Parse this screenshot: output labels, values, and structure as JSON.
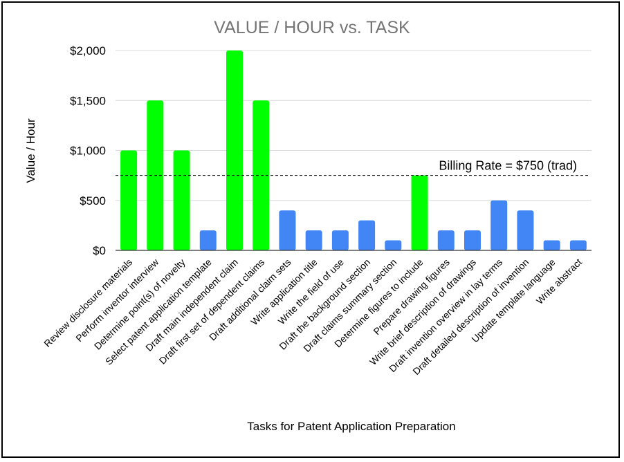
{
  "chart_data": {
    "type": "bar",
    "title": "VALUE / HOUR vs. TASK",
    "xlabel": "Tasks for Patent Application Preparation",
    "ylabel": "Value / Hour",
    "ylim": [
      0,
      2000
    ],
    "yticks": [
      0,
      500,
      1000,
      1500,
      2000
    ],
    "ytick_labels": [
      "$0",
      "$500",
      "$1,000",
      "$1,500",
      "$2,000"
    ],
    "grid": true,
    "categories": [
      "Review disclosure materials",
      "Perform inventor interview",
      "Determine point(s) of novelty",
      "Select patent application template",
      "Draft main independent claim",
      "Draft first set of dependent claims",
      "Draft additional claim sets",
      "Write application title",
      "Write the field of use",
      "Draft the background section",
      "Draft claims summary section",
      "Determine figures to include",
      "Prepare drawing figures",
      "Write brief description of drawings",
      "Draft invention overview in lay terms",
      "Draft detailed description of invention",
      "Update template language",
      "Write abstract"
    ],
    "values": [
      1000,
      1500,
      1000,
      200,
      2000,
      1500,
      400,
      200,
      200,
      300,
      100,
      750,
      200,
      200,
      500,
      400,
      100,
      100
    ],
    "bar_colors": [
      "#00ff00",
      "#00ff00",
      "#00ff00",
      "#4285f4",
      "#00ff00",
      "#00ff00",
      "#4285f4",
      "#4285f4",
      "#4285f4",
      "#4285f4",
      "#4285f4",
      "#00ff00",
      "#4285f4",
      "#4285f4",
      "#4285f4",
      "#4285f4",
      "#4285f4",
      "#4285f4"
    ],
    "reference_line": {
      "value": 750,
      "label": "Billing Rate = $750 (trad)",
      "style": "dashed"
    }
  }
}
